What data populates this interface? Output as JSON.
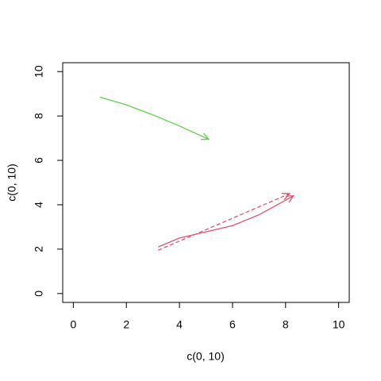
{
  "chart_data": {
    "type": "line",
    "xlabel": "c(0, 10)",
    "ylabel": "c(0, 10)",
    "xlim": [
      -0.4,
      10.4
    ],
    "ylim": [
      -0.4,
      10.4
    ],
    "xticks": [
      0,
      2,
      4,
      6,
      8,
      10
    ],
    "yticks": [
      0,
      2,
      4,
      6,
      8,
      10
    ],
    "series": [
      {
        "color": "#61d04f",
        "dash": false,
        "arrow": true,
        "x": [
          1,
          2,
          3,
          4,
          5.1
        ],
        "values": [
          8.85,
          8.5,
          8.05,
          7.55,
          6.95
        ]
      },
      {
        "color": "#df536b",
        "dash": false,
        "arrow": true,
        "x": [
          3.2,
          4,
          5,
          6,
          7,
          8.3
        ],
        "values": [
          2.1,
          2.5,
          2.78,
          3.06,
          3.55,
          4.4
        ]
      },
      {
        "color": "#df536b",
        "dash": true,
        "arrow": true,
        "x": [
          3.2,
          8.15
        ],
        "values": [
          1.95,
          4.5
        ]
      }
    ]
  }
}
